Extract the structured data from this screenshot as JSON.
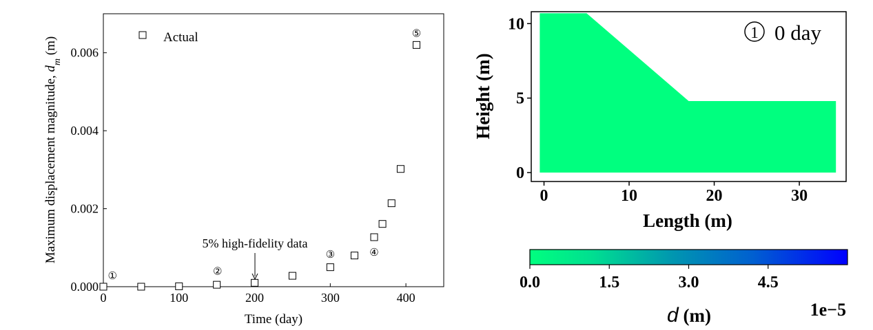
{
  "chart_data": [
    {
      "type": "scatter",
      "xlabel": "Time (day)",
      "ylabel_main": "Maximum displacement magnitude, ",
      "ylabel_symbol": "d",
      "ylabel_sub": "m",
      "ylabel_unit": " (m)",
      "xlim": [
        0,
        450
      ],
      "ylim": [
        0,
        0.007
      ],
      "x_ticks": [
        0,
        100,
        200,
        300,
        400
      ],
      "x_tick_labels": [
        "0",
        "100",
        "200",
        "300",
        "400"
      ],
      "y_ticks": [
        0,
        0.002,
        0.004,
        0.006
      ],
      "y_tick_labels": [
        "0.000",
        "0.002",
        "0.004",
        "0.006"
      ],
      "legend": {
        "label": "Actual",
        "placement": "top-left"
      },
      "series": [
        {
          "name": "Actual",
          "marker": "open-square",
          "points": [
            [
              0,
              0.0
            ],
            [
              50,
              0.0
            ],
            [
              100,
              1e-05
            ],
            [
              150,
              5e-05
            ],
            [
              200,
              0.0001
            ],
            [
              250,
              0.00028
            ],
            [
              300,
              0.0005
            ],
            [
              332,
              0.0008
            ],
            [
              358,
              0.00127
            ],
            [
              369,
              0.00161
            ],
            [
              381,
              0.00214
            ],
            [
              393,
              0.00302
            ],
            [
              414,
              0.0062
            ]
          ]
        }
      ],
      "stage_markers": [
        {
          "label": "①",
          "x": 12,
          "y": 0.00028
        },
        {
          "label": "②",
          "x": 151,
          "y": 0.0004
        },
        {
          "label": "③",
          "x": 300,
          "y": 0.00083
        },
        {
          "label": "④",
          "x": 358,
          "y": 0.00088
        },
        {
          "label": "⑤",
          "x": 414,
          "y": 0.0065
        }
      ],
      "annotation": {
        "text": "5% high-fidelity data",
        "arrow_to": [
          200,
          0.00012
        ]
      }
    },
    {
      "type": "heatmap",
      "xlabel": "Length (m)",
      "ylabel": "Height (m)",
      "xlim": [
        -1.5,
        35.5
      ],
      "ylim": [
        -0.6,
        10.8
      ],
      "x_ticks": [
        0,
        10,
        20,
        30
      ],
      "x_tick_labels": [
        "0",
        "10",
        "20",
        "30"
      ],
      "y_ticks": [
        0,
        5,
        10
      ],
      "y_tick_labels": [
        "0",
        "5",
        "10"
      ],
      "title_symbol": "①",
      "title": "0 day",
      "slope_profile": [
        [
          -0.5,
          0
        ],
        [
          -0.5,
          10.7
        ],
        [
          5,
          10.7
        ],
        [
          17,
          4.8
        ],
        [
          34.3,
          4.8
        ],
        [
          34.3,
          0
        ]
      ],
      "fill_color": "#00FF7F",
      "colorbar": {
        "min_color": "#00FF7F",
        "max_color": "#0000FF",
        "vmin": 0,
        "vmax": 6.0,
        "ticks": [
          0,
          1.5,
          3.0,
          4.5
        ],
        "tick_labels": [
          "0.0",
          "1.5",
          "3.0",
          "4.5"
        ],
        "label_symbol": "d",
        "label_unit": " (m)",
        "offset_label": "1e−5"
      }
    }
  ]
}
